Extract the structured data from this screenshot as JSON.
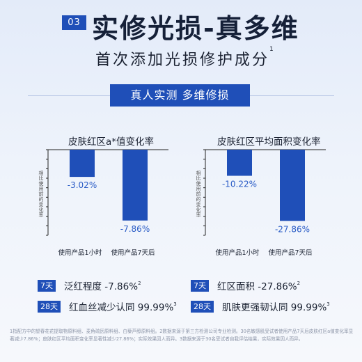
{
  "header": {
    "badge": "03",
    "title": "实修光损-真多维",
    "subtitle": "首次添加光损修护成分",
    "subtitle_ref": "1",
    "banner": "真人实测 多维修损"
  },
  "colors": {
    "accent": "#1f4fb8",
    "bar": "#1f4fb8",
    "label": "#2a5cc6"
  },
  "chart_data": [
    {
      "type": "bar",
      "title": "皮肤红区a*值变化率",
      "ylabel": "相比使用前的变化率",
      "categories": [
        "使用产品1小时",
        "使用产品7天后"
      ],
      "values": [
        -3.02,
        -7.86
      ],
      "value_labels": [
        "-3.02%",
        "-7.86%"
      ],
      "ylim": [
        -9.5,
        0
      ]
    },
    {
      "type": "bar",
      "title": "皮肤红区平均面积变化率",
      "ylabel": "相比使用前的变化率",
      "categories": [
        "使用产品1小时",
        "使用产品7天后"
      ],
      "values": [
        -10.22,
        -27.86
      ],
      "value_labels": [
        "-10.22%",
        "-27.86%"
      ],
      "ylim": [
        -33.5,
        0
      ]
    }
  ],
  "stats": [
    {
      "tag": "7天",
      "text": "泛红程度 -7.86%",
      "ref": "2"
    },
    {
      "tag": "7天",
      "text": "红区面积 -27.86%",
      "ref": "2"
    },
    {
      "tag": "28天",
      "text": "红血丝减少认同 99.99%",
      "ref": "3"
    },
    {
      "tag": "28天",
      "text": "肌肤更强韧认同 99.99%",
      "ref": "3"
    }
  ],
  "footnote": "1指配方中的望春花花提取物原料组、麦角硫因原料组、白藜芦醇原料组。2数据来源于第三方检测公司专业检测。30名敏感肌受试者使用产品7天后皮肤红区a值变化率显著减少7.86%；皮肤红区平均面积变化率显著性减少27.86%；实际效果因人而异。3数据来源于30名受试者自我评估结果，实际效果因人而异。"
}
